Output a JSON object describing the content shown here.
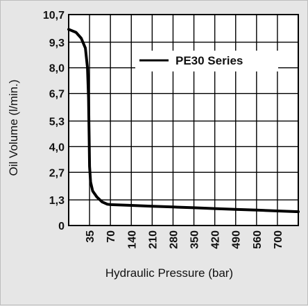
{
  "chart_data": {
    "type": "line",
    "title": "",
    "xlabel": "Hydraulic Pressure (bar)",
    "ylabel": "Oil Volume (l/min.)",
    "x_ticks": [
      "35",
      "70",
      "140",
      "210",
      "280",
      "350",
      "420",
      "490",
      "560",
      "700"
    ],
    "x_tick_positions": [
      1,
      2,
      3,
      4,
      5,
      6,
      7,
      8,
      9,
      10
    ],
    "y_ticks": [
      "0",
      "1,3",
      "2,7",
      "4,0",
      "5,3",
      "6,7",
      "8,0",
      "9,3",
      "10,7"
    ],
    "ylim": [
      0,
      10.7
    ],
    "xlim": [
      0,
      11
    ],
    "grid": true,
    "legend_position": "top-right",
    "series": [
      {
        "name": "PE30 Series",
        "color": "#000000",
        "points": [
          [
            0,
            9.95
          ],
          [
            0.35,
            9.8
          ],
          [
            0.6,
            9.5
          ],
          [
            0.8,
            9.0
          ],
          [
            0.9,
            8.0
          ],
          [
            0.95,
            6.5
          ],
          [
            0.98,
            4.5
          ],
          [
            1.0,
            3.0
          ],
          [
            1.05,
            2.2
          ],
          [
            1.15,
            1.75
          ],
          [
            1.35,
            1.45
          ],
          [
            1.6,
            1.2
          ],
          [
            1.85,
            1.08
          ],
          [
            2.0,
            1.06
          ],
          [
            3.0,
            1.02
          ],
          [
            4.0,
            0.98
          ],
          [
            5.0,
            0.94
          ],
          [
            6.0,
            0.9
          ],
          [
            7.0,
            0.86
          ],
          [
            8.0,
            0.82
          ],
          [
            9.0,
            0.78
          ],
          [
            10.0,
            0.74
          ],
          [
            11.0,
            0.7
          ]
        ]
      }
    ]
  }
}
